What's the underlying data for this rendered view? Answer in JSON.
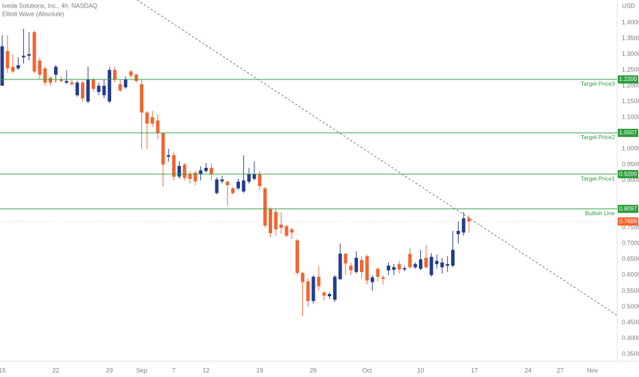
{
  "chart_data": {
    "type": "candlestick",
    "title": "Iveda Solutions, Inc., 4h, NASDAQ",
    "subtitle": "Elliott Wave (Absolute)",
    "currency": "USD",
    "up_color": "#213b8e",
    "down_color": "#f2642e",
    "level_color": "#2e9e3e",
    "candles": {
      "open": [
        1.2,
        1.31,
        1.26,
        1.255,
        1.29,
        1.295,
        1.37,
        1.28,
        1.255,
        1.225,
        1.235,
        1.22,
        1.21,
        1.21,
        1.17,
        1.21,
        1.15,
        1.22,
        1.18,
        1.17,
        1.15,
        1.25,
        1.205,
        1.195,
        1.245,
        1.235,
        1.205,
        1.115,
        1.1,
        1.09,
        1.05,
        0.975,
        0.98,
        0.912,
        0.95,
        0.92,
        0.925,
        0.92,
        0.93,
        0.94,
        0.86,
        0.897,
        0.896,
        0.875,
        0.875,
        0.865,
        0.896,
        0.905,
        0.92,
        0.875,
        0.81,
        0.8,
        0.76,
        0.755,
        0.745,
        0.71,
        0.607,
        0.58,
        0.518,
        0.595,
        0.545,
        0.533,
        0.522,
        0.587,
        0.668,
        0.63,
        0.61,
        0.648,
        0.66,
        0.578,
        0.62,
        0.593,
        0.615,
        0.617,
        0.635,
        0.618,
        0.667,
        0.625,
        0.62,
        0.655,
        0.6,
        0.635,
        0.625,
        0.63,
        0.63,
        0.73,
        0.735,
        0.78
      ],
      "high": [
        1.36,
        1.36,
        1.3,
        1.29,
        1.38,
        1.37,
        1.375,
        1.29,
        1.26,
        1.23,
        1.265,
        1.23,
        1.25,
        1.22,
        1.215,
        1.215,
        1.26,
        1.225,
        1.21,
        1.22,
        1.26,
        1.26,
        1.22,
        1.23,
        1.25,
        1.24,
        1.22,
        1.12,
        1.12,
        1.11,
        1.05,
        1.0,
        0.99,
        0.96,
        0.955,
        0.93,
        0.93,
        0.945,
        0.955,
        0.955,
        0.91,
        0.915,
        0.9,
        0.88,
        0.905,
        0.98,
        0.94,
        0.96,
        0.93,
        0.88,
        0.815,
        0.81,
        0.8,
        0.76,
        0.75,
        0.715,
        0.61,
        0.59,
        0.6,
        0.63,
        0.55,
        0.545,
        0.6,
        0.7,
        0.67,
        0.64,
        0.675,
        0.66,
        0.665,
        0.6,
        0.625,
        0.6,
        0.64,
        0.635,
        0.645,
        0.63,
        0.685,
        0.64,
        0.68,
        0.695,
        0.67,
        0.665,
        0.655,
        0.66,
        0.74,
        0.77,
        0.8,
        0.79
      ],
      "low": [
        1.2,
        1.24,
        1.24,
        1.25,
        1.27,
        1.28,
        1.24,
        1.22,
        1.2,
        1.2,
        1.21,
        1.21,
        1.205,
        1.2,
        1.165,
        1.15,
        1.145,
        1.18,
        1.17,
        1.16,
        1.145,
        1.21,
        1.18,
        1.19,
        1.225,
        1.21,
        1.0,
        1.0,
        1.07,
        1.03,
        0.88,
        0.96,
        0.9,
        0.905,
        0.9,
        0.89,
        0.885,
        0.9,
        0.925,
        0.9,
        0.855,
        0.89,
        0.82,
        0.855,
        0.87,
        0.86,
        0.89,
        0.9,
        0.87,
        0.75,
        0.72,
        0.725,
        0.73,
        0.72,
        0.715,
        0.6,
        0.47,
        0.5,
        0.51,
        0.55,
        0.52,
        0.525,
        0.515,
        0.585,
        0.6,
        0.6,
        0.605,
        0.59,
        0.57,
        0.55,
        0.58,
        0.57,
        0.6,
        0.6,
        0.605,
        0.612,
        0.62,
        0.62,
        0.615,
        0.62,
        0.595,
        0.62,
        0.605,
        0.61,
        0.625,
        0.7,
        0.725,
        0.735
      ],
      "close": [
        1.325,
        1.255,
        1.245,
        1.265,
        1.295,
        1.3,
        1.245,
        1.235,
        1.21,
        1.21,
        1.26,
        1.215,
        1.215,
        1.205,
        1.21,
        1.16,
        1.22,
        1.19,
        1.2,
        1.2,
        1.25,
        1.22,
        1.185,
        1.22,
        1.232,
        1.215,
        1.115,
        1.08,
        1.08,
        1.05,
        0.95,
        0.98,
        0.912,
        0.946,
        0.908,
        0.905,
        0.897,
        0.932,
        0.94,
        0.92,
        0.903,
        0.903,
        0.885,
        0.86,
        0.896,
        0.9,
        0.92,
        0.92,
        0.882,
        0.757,
        0.733,
        0.745,
        0.75,
        0.725,
        0.735,
        0.607,
        0.578,
        0.518,
        0.595,
        0.565,
        0.535,
        0.54,
        0.595,
        0.668,
        0.637,
        0.615,
        0.655,
        0.61,
        0.583,
        0.593,
        0.595,
        0.588,
        0.63,
        0.625,
        0.618,
        0.622,
        0.625,
        0.635,
        0.65,
        0.625,
        0.658,
        0.645,
        0.64,
        0.635,
        0.68,
        0.74,
        0.78,
        0.7699
      ]
    },
    "xlim": [
      -0.4,
      114.6
    ],
    "xticks": [
      {
        "value": 0,
        "label": "15"
      },
      {
        "value": 10,
        "label": "22"
      },
      {
        "value": 20,
        "label": "29"
      },
      {
        "value": 26,
        "label": "Sep"
      },
      {
        "value": 32,
        "label": "7"
      },
      {
        "value": 38,
        "label": "12"
      },
      {
        "value": 48,
        "label": "19"
      },
      {
        "value": 58,
        "label": "26"
      },
      {
        "value": 68,
        "label": "Oct"
      },
      {
        "value": 78,
        "label": "10"
      },
      {
        "value": 88,
        "label": "17"
      },
      {
        "value": 98,
        "label": "24"
      },
      {
        "value": 104,
        "label": "27"
      },
      {
        "value": 110,
        "label": "Nov"
      }
    ],
    "ylim": [
      0.3272,
      1.4716
    ],
    "yticks": [
      {
        "value": 1.4,
        "label": "1.4000"
      },
      {
        "value": 1.35,
        "label": "1.3500"
      },
      {
        "value": 1.3,
        "label": "1.3000"
      },
      {
        "value": 1.25,
        "label": "1.2500"
      },
      {
        "value": 1.2,
        "label": "1.2000"
      },
      {
        "value": 1.15,
        "label": "1.1500"
      },
      {
        "value": 1.1,
        "label": "1.1000"
      },
      {
        "value": 1,
        "label": "1.0000"
      },
      {
        "value": 0.95,
        "label": "0.9500"
      },
      {
        "value": 0.9,
        "label": "0.9000"
      },
      {
        "value": 0.75,
        "label": "0.7500"
      },
      {
        "value": 0.7,
        "label": "0.7000"
      },
      {
        "value": 0.65,
        "label": "0.6500"
      },
      {
        "value": 0.6,
        "label": "0.6000"
      },
      {
        "value": 0.55,
        "label": "0.5500"
      },
      {
        "value": 0.5,
        "label": "0.5000"
      },
      {
        "value": 0.45,
        "label": "0.4500"
      },
      {
        "value": 0.4,
        "label": "0.4000"
      },
      {
        "value": 0.35,
        "label": "0.3500"
      }
    ],
    "levels": [
      {
        "name": "Target Price3",
        "value": 1.22,
        "label": "1.2200"
      },
      {
        "name": "Target Price2",
        "value": 1.0507,
        "label": "1.0507"
      },
      {
        "name": "Target Price1",
        "value": 0.92,
        "label": "0.9200"
      },
      {
        "name": "Bullish Line",
        "value": 0.8097,
        "label": "0.8097"
      }
    ],
    "last_price": 0.7699
  }
}
